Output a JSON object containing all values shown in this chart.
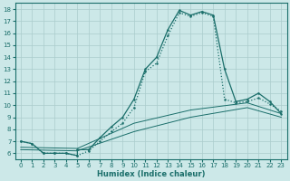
{
  "xlabel": "Humidex (Indice chaleur)",
  "bg_color": "#cce8e8",
  "grid_color": "#aacccc",
  "line_color": "#1a6e6a",
  "xlim": [
    -0.5,
    23.5
  ],
  "ylim": [
    5.5,
    18.5
  ],
  "xticks": [
    0,
    1,
    2,
    3,
    4,
    5,
    6,
    7,
    8,
    9,
    10,
    11,
    12,
    13,
    14,
    15,
    16,
    17,
    18,
    19,
    20,
    21,
    22,
    23
  ],
  "yticks": [
    6,
    7,
    8,
    9,
    10,
    11,
    12,
    13,
    14,
    15,
    16,
    17,
    18
  ],
  "line1_x": [
    0,
    1,
    2,
    3,
    4,
    5,
    5,
    6,
    7,
    8,
    9,
    10,
    11,
    12,
    13,
    14,
    15,
    16,
    17,
    18,
    19,
    20,
    21,
    22,
    23
  ],
  "line1_y": [
    7.0,
    6.8,
    6.0,
    6.0,
    6.0,
    5.8,
    6.3,
    6.3,
    7.3,
    8.2,
    9.0,
    10.5,
    13.0,
    14.0,
    16.3,
    17.9,
    17.5,
    17.8,
    17.5,
    13.0,
    10.3,
    10.5,
    11.0,
    10.3,
    9.3
  ],
  "line2_x": [
    0,
    1,
    2,
    3,
    4,
    5,
    6,
    7,
    8,
    9,
    10,
    11,
    12,
    13,
    14,
    15,
    16,
    17,
    18,
    19,
    20,
    21,
    22,
    23
  ],
  "line2_y": [
    7.0,
    6.8,
    6.0,
    6.0,
    6.0,
    5.8,
    6.2,
    7.0,
    7.8,
    8.5,
    9.8,
    12.8,
    13.5,
    15.8,
    17.7,
    17.4,
    17.7,
    17.4,
    10.5,
    10.2,
    10.3,
    10.6,
    10.1,
    9.5
  ],
  "line3_x": [
    0,
    5,
    10,
    15,
    20,
    23
  ],
  "line3_y": [
    6.5,
    6.4,
    8.5,
    9.6,
    10.2,
    9.3
  ],
  "line4_x": [
    0,
    5,
    10,
    15,
    20,
    23
  ],
  "line4_y": [
    6.3,
    6.2,
    7.8,
    9.0,
    9.8,
    9.0
  ]
}
